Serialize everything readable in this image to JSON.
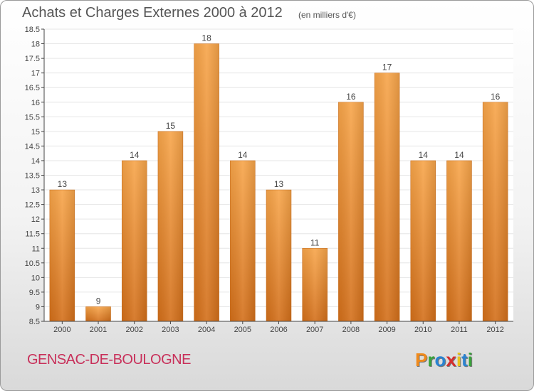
{
  "header": {
    "title": "Achats et Charges Externes 2000 à 2012",
    "subtitle": "(en milliers d'€)"
  },
  "footer": {
    "commune": "GENSAC-DE-BOULOGNE",
    "brand": "Proxiti",
    "brand_colors": [
      "#f08a1c",
      "#37a33a",
      "#2a83d1",
      "#d62e2e",
      "#e8c21e",
      "#2a83d1",
      "#37a33a"
    ]
  },
  "colors": {
    "bar_light": "#f7a54a",
    "bar_dark": "#d36f1a",
    "axis": "#444444",
    "grid": "#e6e6e6",
    "title": "#555555",
    "commune": "#c8305a"
  },
  "chart_data": {
    "type": "bar",
    "categories": [
      "2000",
      "2001",
      "2002",
      "2003",
      "2004",
      "2005",
      "2006",
      "2007",
      "2008",
      "2009",
      "2010",
      "2011",
      "2012"
    ],
    "values": [
      13,
      9,
      14,
      15,
      18,
      14,
      13,
      11,
      16,
      17,
      14,
      14,
      16
    ],
    "ylim": [
      8.5,
      18.5
    ],
    "yticks": [
      8.5,
      9,
      9.5,
      10,
      10.5,
      11,
      11.5,
      12,
      12.5,
      13,
      13.5,
      14,
      14.5,
      15,
      15.5,
      16,
      16.5,
      17,
      17.5,
      18,
      18.5
    ],
    "data_labels": true,
    "grid": true
  }
}
